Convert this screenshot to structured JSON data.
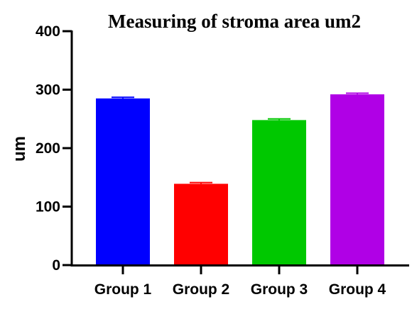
{
  "chart_data": {
    "type": "bar",
    "title": "Measuring of stroma area um2",
    "xlabel": "",
    "ylabel": "um",
    "categories": [
      "Group 1",
      "Group 2",
      "Group 3",
      "Group 4"
    ],
    "values": [
      285,
      139,
      248,
      292
    ],
    "errors": [
      2,
      2,
      2,
      2
    ],
    "colors": [
      "#0000ff",
      "#ff0000",
      "#00c800",
      "#b000e6"
    ],
    "ylim": [
      0,
      400
    ],
    "yticks": [
      0,
      100,
      200,
      300,
      400
    ],
    "grid": false,
    "legend": "none"
  }
}
